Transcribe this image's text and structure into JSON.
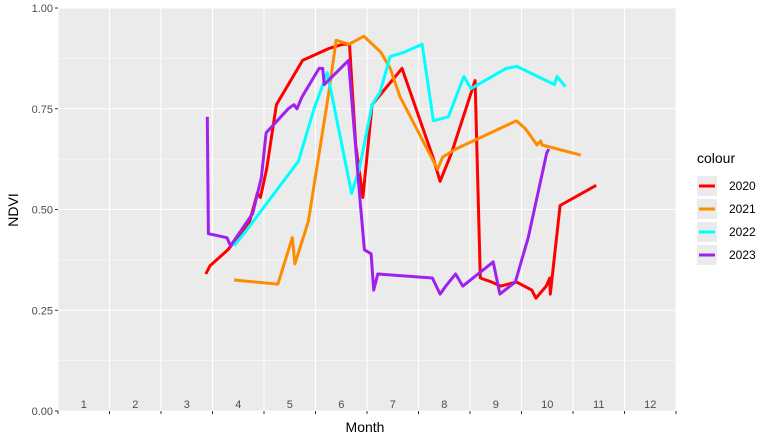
{
  "chart_data": {
    "type": "line",
    "xlabel": "Month",
    "ylabel": "NDVI",
    "ylim": [
      0,
      1
    ],
    "y_ticks": [
      "0.00",
      "0.25",
      "0.50",
      "0.75",
      "1.00"
    ],
    "x_tick_labels": [
      "1",
      "2",
      "3",
      "4",
      "5",
      "6",
      "7",
      "8",
      "9",
      "10",
      "11",
      "12"
    ],
    "legend_title": "colour",
    "legend_position": "right",
    "grid": true,
    "series": [
      {
        "name": "2020",
        "color": "#ff0000",
        "points": [
          [
            3.37,
            0.34
          ],
          [
            3.45,
            0.36
          ],
          [
            3.8,
            0.4
          ],
          [
            4.22,
            0.47
          ],
          [
            4.37,
            0.54
          ],
          [
            4.43,
            0.53
          ],
          [
            4.55,
            0.6
          ],
          [
            4.74,
            0.76
          ],
          [
            5.25,
            0.87
          ],
          [
            5.77,
            0.9
          ],
          [
            6.03,
            0.91
          ],
          [
            6.16,
            0.91
          ],
          [
            6.28,
            0.66
          ],
          [
            6.42,
            0.53
          ],
          [
            6.6,
            0.76
          ],
          [
            7.18,
            0.85
          ],
          [
            7.78,
            0.63
          ],
          [
            7.92,
            0.57
          ],
          [
            8.14,
            0.64
          ],
          [
            8.6,
            0.82
          ],
          [
            8.7,
            0.33
          ],
          [
            8.92,
            0.32
          ],
          [
            9.1,
            0.31
          ],
          [
            9.4,
            0.32
          ],
          [
            9.7,
            0.3
          ],
          [
            9.78,
            0.28
          ],
          [
            9.98,
            0.31
          ],
          [
            10.05,
            0.33
          ],
          [
            10.06,
            0.29
          ],
          [
            10.25,
            0.51
          ],
          [
            10.95,
            0.56
          ]
        ]
      },
      {
        "name": "2021",
        "color": "#ff8c00",
        "points": [
          [
            3.92,
            0.325
          ],
          [
            4.77,
            0.315
          ],
          [
            5.05,
            0.43
          ],
          [
            5.1,
            0.365
          ],
          [
            5.36,
            0.47
          ],
          [
            5.77,
            0.8
          ],
          [
            5.9,
            0.92
          ],
          [
            6.15,
            0.91
          ],
          [
            6.44,
            0.93
          ],
          [
            6.77,
            0.89
          ],
          [
            6.95,
            0.85
          ],
          [
            7.14,
            0.78
          ],
          [
            7.87,
            0.6
          ],
          [
            7.97,
            0.63
          ],
          [
            8.22,
            0.65
          ],
          [
            9.4,
            0.72
          ],
          [
            9.58,
            0.7
          ],
          [
            9.8,
            0.66
          ],
          [
            9.87,
            0.67
          ],
          [
            9.9,
            0.66
          ],
          [
            10.65,
            0.635
          ]
        ]
      },
      {
        "name": "2022",
        "color": "#00ffff",
        "points": [
          [
            3.92,
            0.41
          ],
          [
            4.17,
            0.45
          ],
          [
            5.17,
            0.62
          ],
          [
            5.47,
            0.75
          ],
          [
            5.73,
            0.84
          ],
          [
            6.2,
            0.54
          ],
          [
            6.35,
            0.6
          ],
          [
            6.6,
            0.76
          ],
          [
            6.75,
            0.79
          ],
          [
            6.95,
            0.88
          ],
          [
            7.22,
            0.89
          ],
          [
            7.57,
            0.91
          ],
          [
            7.79,
            0.72
          ],
          [
            8.08,
            0.73
          ],
          [
            8.38,
            0.83
          ],
          [
            8.52,
            0.8
          ],
          [
            9.2,
            0.85
          ],
          [
            9.41,
            0.855
          ],
          [
            10.14,
            0.81
          ],
          [
            10.19,
            0.83
          ],
          [
            10.35,
            0.805
          ]
        ]
      },
      {
        "name": "2023",
        "color": "#a020f0",
        "points": [
          [
            3.4,
            0.73
          ],
          [
            3.42,
            0.44
          ],
          [
            3.78,
            0.43
          ],
          [
            3.85,
            0.41
          ],
          [
            4.28,
            0.49
          ],
          [
            4.45,
            0.58
          ],
          [
            4.54,
            0.69
          ],
          [
            4.97,
            0.75
          ],
          [
            5.08,
            0.76
          ],
          [
            5.14,
            0.75
          ],
          [
            5.24,
            0.78
          ],
          [
            5.57,
            0.85
          ],
          [
            5.64,
            0.85
          ],
          [
            5.67,
            0.81
          ],
          [
            6.14,
            0.87
          ],
          [
            6.36,
            0.53
          ],
          [
            6.45,
            0.4
          ],
          [
            6.58,
            0.39
          ],
          [
            6.63,
            0.3
          ],
          [
            6.71,
            0.34
          ],
          [
            7.77,
            0.33
          ],
          [
            7.92,
            0.29
          ],
          [
            8.03,
            0.31
          ],
          [
            8.22,
            0.34
          ],
          [
            8.36,
            0.31
          ],
          [
            8.95,
            0.37
          ],
          [
            9.08,
            0.29
          ],
          [
            9.38,
            0.32
          ],
          [
            9.63,
            0.43
          ],
          [
            9.99,
            0.64
          ],
          [
            10.03,
            0.65
          ]
        ]
      }
    ]
  }
}
